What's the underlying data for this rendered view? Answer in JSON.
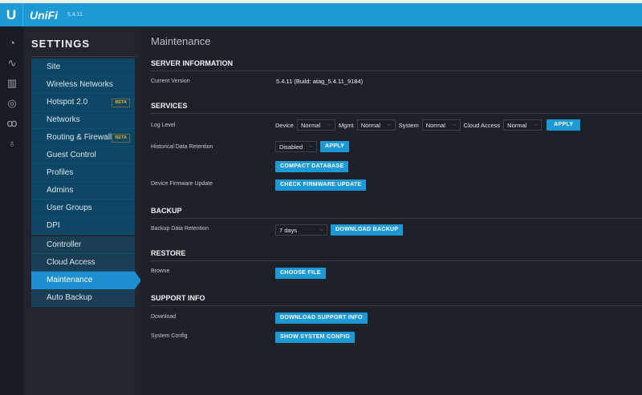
{
  "header": {
    "logo": "U",
    "brand": "UniFi",
    "version": "5.4.11"
  },
  "rail": {
    "icons": [
      "dashboard-icon",
      "statistics-icon",
      "map-icon",
      "devices-icon",
      "clients-icon",
      "insights-icon"
    ]
  },
  "settings": {
    "title": "SETTINGS",
    "items": [
      {
        "label": "Site"
      },
      {
        "label": "Wireless Networks"
      },
      {
        "label": "Hotspot 2.0",
        "badge": "BETA"
      },
      {
        "label": "Networks"
      },
      {
        "label": "Routing & Firewall",
        "badge": "BETA"
      },
      {
        "label": "Guest Control"
      },
      {
        "label": "Profiles"
      },
      {
        "label": "Admins"
      },
      {
        "label": "User Groups"
      },
      {
        "label": "DPI"
      }
    ],
    "items2": [
      {
        "label": "Controller"
      },
      {
        "label": "Cloud Access"
      },
      {
        "label": "Maintenance",
        "selected": true
      },
      {
        "label": "Auto Backup"
      }
    ]
  },
  "main": {
    "title": "Maintenance",
    "server_info": {
      "heading": "SERVER INFORMATION",
      "version_label": "Current Version",
      "version_value": "5.4.11 (Build: atag_5.4.11_9184)"
    },
    "services": {
      "heading": "SERVICES",
      "log_level_label": "Log Level",
      "device_label": "Device",
      "device_value": "Normal",
      "mgmt_label": "Mgmt",
      "mgmt_value": "Normal",
      "system_label": "System",
      "system_value": "Normal",
      "cloud_label": "Cloud Access",
      "cloud_value": "Normal",
      "apply": "APPLY",
      "retention_label": "Historical Data Retention",
      "retention_value": "Disabled",
      "retention_apply": "APPLY",
      "compact": "COMPACT DATABASE",
      "firmware_label": "Device Firmware Update",
      "firmware_button": "CHECK FIRMWARE UPDATE"
    },
    "backup": {
      "heading": "BACKUP",
      "retention_label": "Backup Data Retention",
      "retention_value": "7 days",
      "download": "DOWNLOAD BACKUP"
    },
    "restore": {
      "heading": "RESTORE",
      "browse_label": "Browse",
      "choose": "CHOOSE FILE"
    },
    "support": {
      "heading": "SUPPORT INFO",
      "download_label": "Download",
      "download_button": "DOWNLOAD SUPPORT INFO",
      "config_label": "System Config",
      "config_button": "SHOW SYSTEM CONFIG"
    }
  },
  "colors": {
    "accent": "#1d9ad6",
    "beta": "#e3b021"
  }
}
